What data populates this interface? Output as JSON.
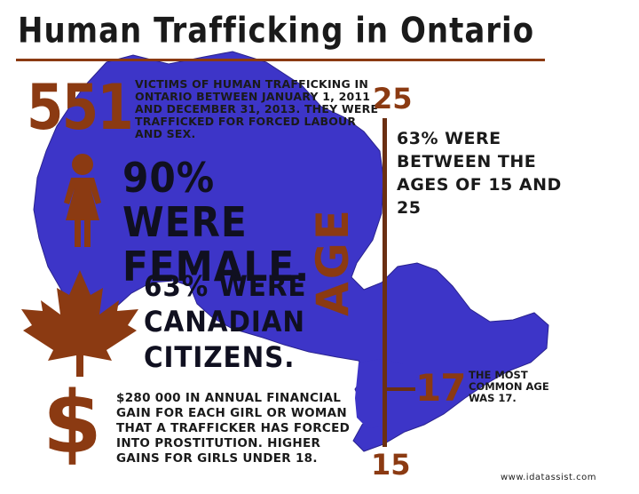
{
  "title": "Human Trafficking in Ontario",
  "victims": {
    "count": "551",
    "text": "Victims of human trafficking in Ontario between January 1, 2011 and December 31, 2013. They were trafficked for forced labour and sex."
  },
  "female": {
    "text": "90% were female.",
    "icon": "woman-icon"
  },
  "canadian": {
    "text": "63% were Canadian citizens.",
    "icon": "maple-leaf-icon"
  },
  "money": {
    "text": "$280 000 in annual financial gain for each girl or woman that a trafficker has forced into prostitution. Higher gains for girls under 18.",
    "icon": "dollar-sign-icon"
  },
  "age": {
    "axis_label": "AGE",
    "top_value": "25",
    "bottom_value": "15",
    "common_value": "17",
    "range_text": "63% were between the ages of 15 and 25",
    "common_text": "The most common age was 17."
  },
  "source": "www.idatassist.com",
  "colors": {
    "map": "#3d35c8",
    "accent": "#8b3a12",
    "text": "#1a1a1a"
  }
}
